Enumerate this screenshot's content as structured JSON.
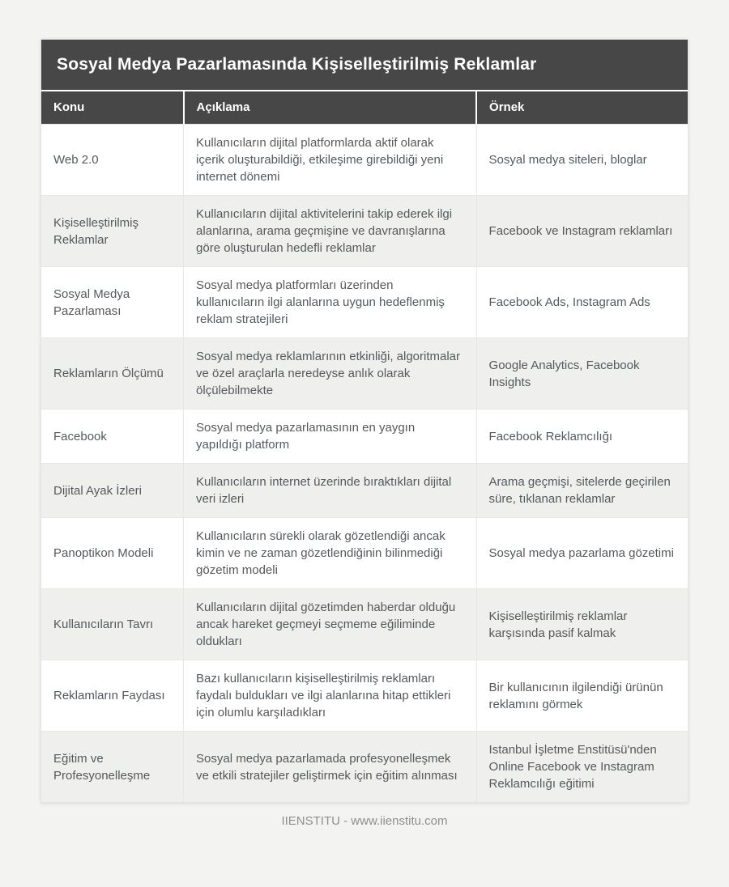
{
  "page": {
    "title": "Sosyal Medya Pazarlamasında Kişiselleştirilmiş Reklamlar",
    "footer": "IIENSTITU - www.iienstitu.com"
  },
  "colors": {
    "header_bg": "#474747",
    "header_text": "#ffffff",
    "row_alt_bg": "#efefee",
    "cell_text": "#55595c",
    "page_bg": "#f3f3f2",
    "border": "#e7e7e5",
    "footer_text": "#908f8c"
  },
  "table": {
    "columns": [
      "Konu",
      "Açıklama",
      "Örnek"
    ],
    "rows": [
      {
        "konu": "Web 2.0",
        "aciklama": "Kullanıcıların dijital platformlarda aktif olarak içerik oluşturabildiği, etkileşime girebildiği yeni internet dönemi",
        "ornek": "Sosyal medya siteleri, bloglar"
      },
      {
        "konu": "Kişiselleştirilmiş Reklamlar",
        "aciklama": "Kullanıcıların dijital aktivitelerini takip ederek ilgi alanlarına, arama geçmişine ve davranışlarına göre oluşturulan hedefli reklamlar",
        "ornek": "Facebook ve Instagram reklamları"
      },
      {
        "konu": "Sosyal Medya Pazarlaması",
        "aciklama": "Sosyal medya platformları üzerinden kullanıcıların ilgi alanlarına uygun hedeflenmiş reklam stratejileri",
        "ornek": "Facebook Ads, Instagram Ads"
      },
      {
        "konu": "Reklamların Ölçümü",
        "aciklama": "Sosyal medya reklamlarının etkinliği, algoritmalar ve özel araçlarla neredeyse anlık olarak ölçülebilmekte",
        "ornek": "Google Analytics, Facebook Insights"
      },
      {
        "konu": "Facebook",
        "aciklama": "Sosyal medya pazarlamasının en yaygın yapıldığı platform",
        "ornek": "Facebook Reklamcılığı"
      },
      {
        "konu": "Dijital Ayak İzleri",
        "aciklama": "Kullanıcıların internet üzerinde bıraktıkları dijital veri izleri",
        "ornek": "Arama geçmişi, sitelerde geçirilen süre, tıklanan reklamlar"
      },
      {
        "konu": "Panoptikon Modeli",
        "aciklama": "Kullanıcıların sürekli olarak gözetlendiği ancak kimin ve ne zaman gözetlendiğinin bilinmediği gözetim modeli",
        "ornek": "Sosyal medya pazarlama gözetimi"
      },
      {
        "konu": "Kullanıcıların Tavrı",
        "aciklama": "Kullanıcıların dijital gözetimden haberdar olduğu ancak hareket geçmeyi seçmeme eğiliminde oldukları",
        "ornek": "Kişiselleştirilmiş reklamlar karşısında pasif kalmak"
      },
      {
        "konu": "Reklamların Faydası",
        "aciklama": "Bazı kullanıcıların kişiselleştirilmiş reklamları faydalı buldukları ve ilgi alanlarına hitap ettikleri için olumlu karşıladıkları",
        "ornek": "Bir kullanıcının ilgilendiği ürünün reklamını görmek"
      },
      {
        "konu": "Eğitim ve Profesyonelleşme",
        "aciklama": "Sosyal medya pazarlamada profesyonelleşmek ve etkili stratejiler geliştirmek için eğitim alınması",
        "ornek": "Istanbul İşletme Enstitüsü'nden Online Facebook ve Instagram Reklamcılığı eğitimi"
      }
    ]
  }
}
